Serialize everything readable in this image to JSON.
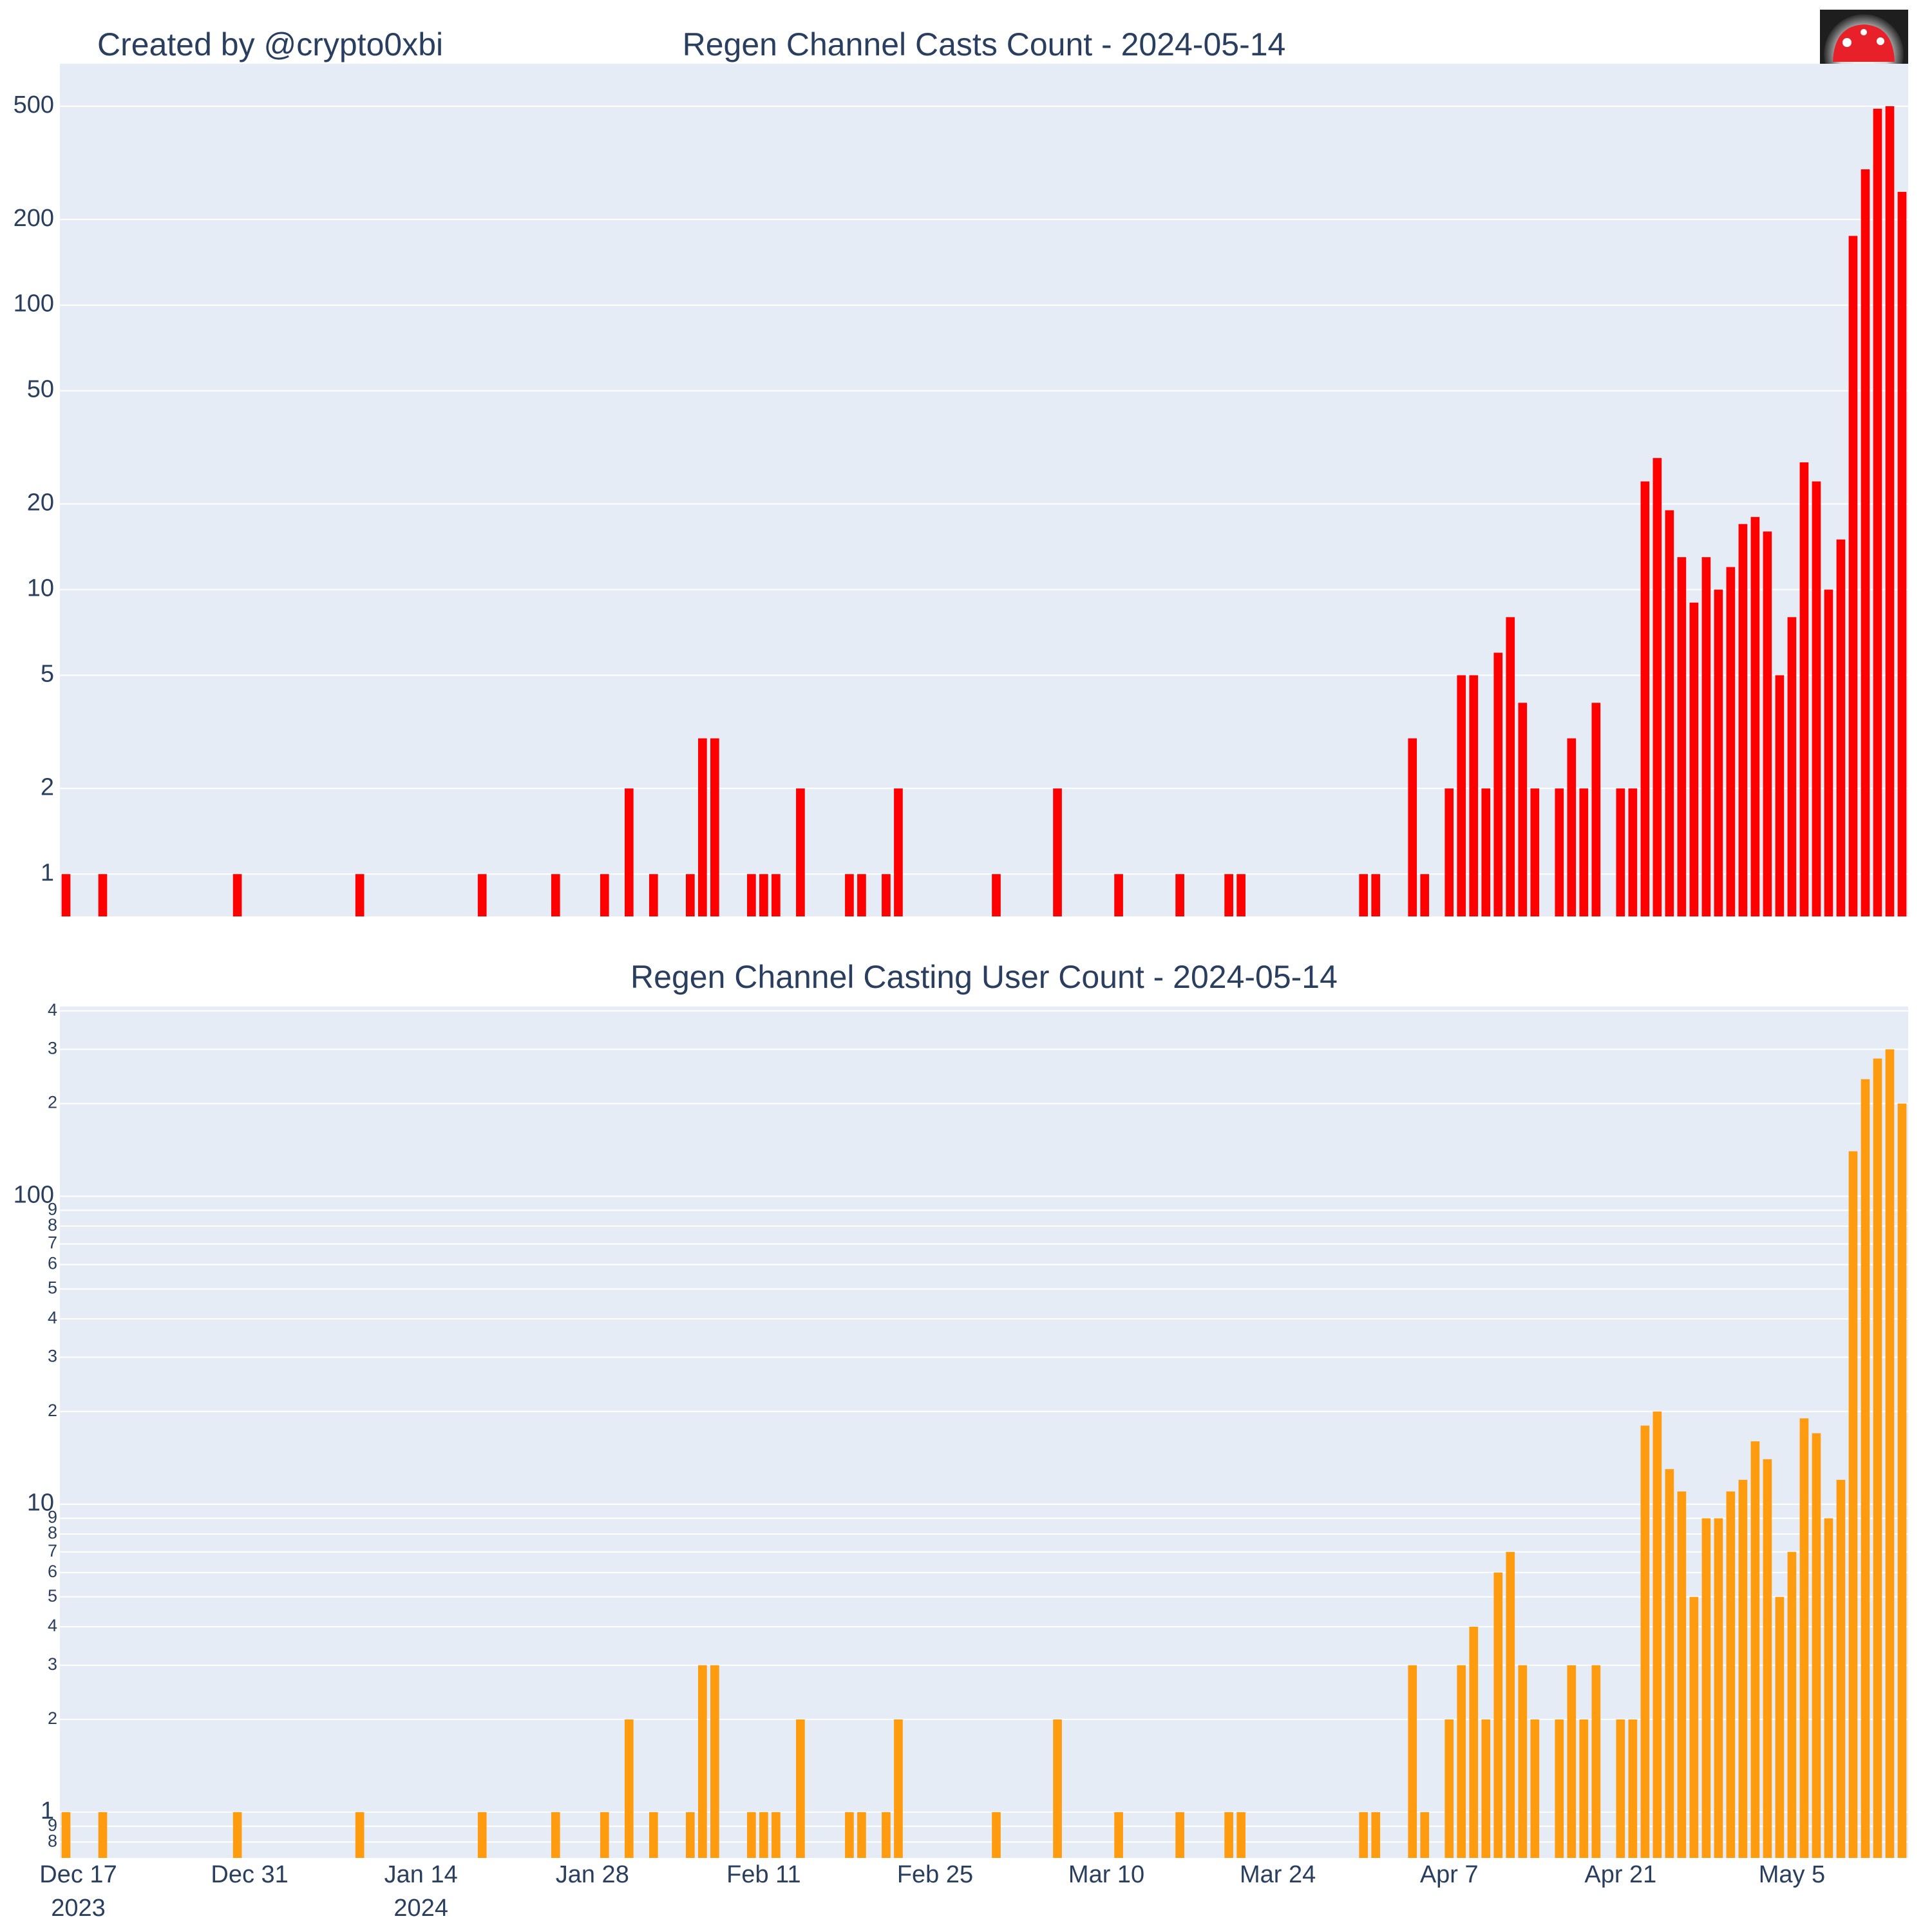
{
  "chart_data": [
    {
      "type": "bar",
      "title": "Regen Channel Casts Count - 2024-05-14",
      "annotation": "Created by @crypto0xbi",
      "color": "#ff0000",
      "log_y": true,
      "grid": true,
      "x": [
        "2023-12-16",
        "2023-12-17",
        "2023-12-18",
        "2023-12-19",
        "2023-12-20",
        "2023-12-21",
        "2023-12-22",
        "2023-12-23",
        "2023-12-24",
        "2023-12-25",
        "2023-12-26",
        "2023-12-27",
        "2023-12-28",
        "2023-12-29",
        "2023-12-30",
        "2023-12-31",
        "2024-01-01",
        "2024-01-02",
        "2024-01-03",
        "2024-01-04",
        "2024-01-05",
        "2024-01-06",
        "2024-01-07",
        "2024-01-08",
        "2024-01-09",
        "2024-01-10",
        "2024-01-11",
        "2024-01-12",
        "2024-01-13",
        "2024-01-14",
        "2024-01-15",
        "2024-01-16",
        "2024-01-17",
        "2024-01-18",
        "2024-01-19",
        "2024-01-20",
        "2024-01-21",
        "2024-01-22",
        "2024-01-23",
        "2024-01-24",
        "2024-01-25",
        "2024-01-26",
        "2024-01-27",
        "2024-01-28",
        "2024-01-29",
        "2024-01-30",
        "2024-01-31",
        "2024-02-01",
        "2024-02-02",
        "2024-02-03",
        "2024-02-04",
        "2024-02-05",
        "2024-02-06",
        "2024-02-07",
        "2024-02-08",
        "2024-02-09",
        "2024-02-10",
        "2024-02-11",
        "2024-02-12",
        "2024-02-13",
        "2024-02-14",
        "2024-02-15",
        "2024-02-16",
        "2024-02-17",
        "2024-02-18",
        "2024-02-19",
        "2024-02-20",
        "2024-02-21",
        "2024-02-22",
        "2024-02-23",
        "2024-02-24",
        "2024-02-25",
        "2024-02-26",
        "2024-02-27",
        "2024-02-28",
        "2024-02-29",
        "2024-03-01",
        "2024-03-02",
        "2024-03-03",
        "2024-03-04",
        "2024-03-05",
        "2024-03-06",
        "2024-03-07",
        "2024-03-08",
        "2024-03-09",
        "2024-03-10",
        "2024-03-11",
        "2024-03-12",
        "2024-03-13",
        "2024-03-14",
        "2024-03-15",
        "2024-03-16",
        "2024-03-17",
        "2024-03-18",
        "2024-03-19",
        "2024-03-20",
        "2024-03-21",
        "2024-03-22",
        "2024-03-23",
        "2024-03-24",
        "2024-03-25",
        "2024-03-26",
        "2024-03-27",
        "2024-03-28",
        "2024-03-29",
        "2024-03-30",
        "2024-03-31",
        "2024-04-01",
        "2024-04-02",
        "2024-04-03",
        "2024-04-04",
        "2024-04-05",
        "2024-04-06",
        "2024-04-07",
        "2024-04-08",
        "2024-04-09",
        "2024-04-10",
        "2024-04-11",
        "2024-04-12",
        "2024-04-13",
        "2024-04-14",
        "2024-04-15",
        "2024-04-16",
        "2024-04-17",
        "2024-04-18",
        "2024-04-19",
        "2024-04-20",
        "2024-04-21",
        "2024-04-22",
        "2024-04-23",
        "2024-04-24",
        "2024-04-25",
        "2024-04-26",
        "2024-04-27",
        "2024-04-28",
        "2024-04-29",
        "2024-04-30",
        "2024-05-01",
        "2024-05-02",
        "2024-05-03",
        "2024-05-04",
        "2024-05-05",
        "2024-05-06",
        "2024-05-07",
        "2024-05-08",
        "2024-05-09",
        "2024-05-10",
        "2024-05-11",
        "2024-05-12",
        "2024-05-13",
        "2024-05-14"
      ],
      "values": [
        1,
        null,
        null,
        1,
        null,
        null,
        null,
        null,
        null,
        null,
        null,
        null,
        null,
        null,
        1,
        null,
        null,
        null,
        null,
        null,
        null,
        null,
        null,
        null,
        1,
        null,
        null,
        null,
        null,
        null,
        null,
        null,
        null,
        null,
        1,
        null,
        null,
        null,
        null,
        null,
        1,
        null,
        null,
        null,
        1,
        null,
        2,
        null,
        1,
        null,
        null,
        1,
        3,
        3,
        null,
        null,
        1,
        1,
        1,
        null,
        2,
        null,
        null,
        null,
        1,
        1,
        null,
        1,
        2,
        null,
        null,
        null,
        null,
        null,
        null,
        null,
        1,
        null,
        null,
        null,
        null,
        2,
        null,
        null,
        null,
        null,
        1,
        null,
        null,
        null,
        null,
        1,
        null,
        null,
        null,
        1,
        1,
        null,
        null,
        null,
        null,
        null,
        null,
        null,
        null,
        null,
        1,
        1,
        null,
        null,
        3,
        1,
        null,
        2,
        5,
        5,
        2,
        6,
        8,
        4,
        2,
        null,
        2,
        3,
        2,
        4,
        null,
        2,
        2,
        24,
        29,
        19,
        13,
        9,
        13,
        10,
        12,
        17,
        18,
        16,
        5,
        8,
        28,
        24,
        10,
        15,
        175,
        300,
        490,
        500,
        250
      ],
      "xlim": [
        "2023-12-15T12:00",
        "2024-05-14T12:00"
      ],
      "ylim": [
        0.71,
        705
      ],
      "yticks": [
        1,
        2,
        5,
        10,
        20,
        50,
        100,
        200,
        500
      ]
    },
    {
      "type": "bar",
      "title": "Regen Channel Casting User Count - 2024-05-14",
      "color": "#ff9b0f",
      "log_y": true,
      "grid": true,
      "x": [
        "2023-12-16",
        "2023-12-17",
        "2023-12-18",
        "2023-12-19",
        "2023-12-20",
        "2023-12-21",
        "2023-12-22",
        "2023-12-23",
        "2023-12-24",
        "2023-12-25",
        "2023-12-26",
        "2023-12-27",
        "2023-12-28",
        "2023-12-29",
        "2023-12-30",
        "2023-12-31",
        "2024-01-01",
        "2024-01-02",
        "2024-01-03",
        "2024-01-04",
        "2024-01-05",
        "2024-01-06",
        "2024-01-07",
        "2024-01-08",
        "2024-01-09",
        "2024-01-10",
        "2024-01-11",
        "2024-01-12",
        "2024-01-13",
        "2024-01-14",
        "2024-01-15",
        "2024-01-16",
        "2024-01-17",
        "2024-01-18",
        "2024-01-19",
        "2024-01-20",
        "2024-01-21",
        "2024-01-22",
        "2024-01-23",
        "2024-01-24",
        "2024-01-25",
        "2024-01-26",
        "2024-01-27",
        "2024-01-28",
        "2024-01-29",
        "2024-01-30",
        "2024-01-31",
        "2024-02-01",
        "2024-02-02",
        "2024-02-03",
        "2024-02-04",
        "2024-02-05",
        "2024-02-06",
        "2024-02-07",
        "2024-02-08",
        "2024-02-09",
        "2024-02-10",
        "2024-02-11",
        "2024-02-12",
        "2024-02-13",
        "2024-02-14",
        "2024-02-15",
        "2024-02-16",
        "2024-02-17",
        "2024-02-18",
        "2024-02-19",
        "2024-02-20",
        "2024-02-21",
        "2024-02-22",
        "2024-02-23",
        "2024-02-24",
        "2024-02-25",
        "2024-02-26",
        "2024-02-27",
        "2024-02-28",
        "2024-02-29",
        "2024-03-01",
        "2024-03-02",
        "2024-03-03",
        "2024-03-04",
        "2024-03-05",
        "2024-03-06",
        "2024-03-07",
        "2024-03-08",
        "2024-03-09",
        "2024-03-10",
        "2024-03-11",
        "2024-03-12",
        "2024-03-13",
        "2024-03-14",
        "2024-03-15",
        "2024-03-16",
        "2024-03-17",
        "2024-03-18",
        "2024-03-19",
        "2024-03-20",
        "2024-03-21",
        "2024-03-22",
        "2024-03-23",
        "2024-03-24",
        "2024-03-25",
        "2024-03-26",
        "2024-03-27",
        "2024-03-28",
        "2024-03-29",
        "2024-03-30",
        "2024-03-31",
        "2024-04-01",
        "2024-04-02",
        "2024-04-03",
        "2024-04-04",
        "2024-04-05",
        "2024-04-06",
        "2024-04-07",
        "2024-04-08",
        "2024-04-09",
        "2024-04-10",
        "2024-04-11",
        "2024-04-12",
        "2024-04-13",
        "2024-04-14",
        "2024-04-15",
        "2024-04-16",
        "2024-04-17",
        "2024-04-18",
        "2024-04-19",
        "2024-04-20",
        "2024-04-21",
        "2024-04-22",
        "2024-04-23",
        "2024-04-24",
        "2024-04-25",
        "2024-04-26",
        "2024-04-27",
        "2024-04-28",
        "2024-04-29",
        "2024-04-30",
        "2024-05-01",
        "2024-05-02",
        "2024-05-03",
        "2024-05-04",
        "2024-05-05",
        "2024-05-06",
        "2024-05-07",
        "2024-05-08",
        "2024-05-09",
        "2024-05-10",
        "2024-05-11",
        "2024-05-12",
        "2024-05-13",
        "2024-05-14"
      ],
      "values": [
        1,
        null,
        null,
        1,
        null,
        null,
        null,
        null,
        null,
        null,
        null,
        null,
        null,
        null,
        1,
        null,
        null,
        null,
        null,
        null,
        null,
        null,
        null,
        null,
        1,
        null,
        null,
        null,
        null,
        null,
        null,
        null,
        null,
        null,
        1,
        null,
        null,
        null,
        null,
        null,
        1,
        null,
        null,
        null,
        1,
        null,
        2,
        null,
        1,
        null,
        null,
        1,
        3,
        3,
        null,
        null,
        1,
        1,
        1,
        null,
        2,
        null,
        null,
        null,
        1,
        1,
        null,
        1,
        2,
        null,
        null,
        null,
        null,
        null,
        null,
        null,
        1,
        null,
        null,
        null,
        null,
        2,
        null,
        null,
        null,
        null,
        1,
        null,
        null,
        null,
        null,
        1,
        null,
        null,
        null,
        1,
        1,
        null,
        null,
        null,
        null,
        null,
        null,
        null,
        null,
        null,
        1,
        1,
        null,
        null,
        3,
        1,
        null,
        2,
        3,
        4,
        2,
        6,
        7,
        3,
        2,
        null,
        2,
        3,
        2,
        3,
        null,
        2,
        2,
        18,
        20,
        13,
        11,
        5,
        9,
        9,
        11,
        12,
        16,
        14,
        5,
        7,
        19,
        17,
        9,
        12,
        140,
        240,
        280,
        300,
        200
      ],
      "xlim": [
        "2023-12-15T12:00",
        "2024-05-14T12:00"
      ],
      "xticks": [
        {
          "value": "2023-12-17",
          "label": "Dec 17\n2023"
        },
        {
          "value": "2023-12-31",
          "label": "Dec 31"
        },
        {
          "value": "2024-01-14",
          "label": "Jan 14\n2024"
        },
        {
          "value": "2024-01-28",
          "label": "Jan 28"
        },
        {
          "value": "2024-02-11",
          "label": "Feb 11"
        },
        {
          "value": "2024-02-25",
          "label": "Feb 25"
        },
        {
          "value": "2024-03-10",
          "label": "Mar 10"
        },
        {
          "value": "2024-03-24",
          "label": "Mar 24"
        },
        {
          "value": "2024-04-07",
          "label": "Apr 7"
        },
        {
          "value": "2024-04-21",
          "label": "Apr 21"
        },
        {
          "value": "2024-05-05",
          "label": "May 5"
        }
      ],
      "ylim": [
        0.71,
        413
      ],
      "yticks": [
        {
          "value": 0.8,
          "label": "8"
        },
        {
          "value": 0.9,
          "label": "9"
        },
        1,
        {
          "value": 2,
          "label": "2"
        },
        {
          "value": 3,
          "label": "3"
        },
        {
          "value": 4,
          "label": "4"
        },
        {
          "value": 5,
          "label": "5"
        },
        {
          "value": 6,
          "label": "6"
        },
        {
          "value": 7,
          "label": "7"
        },
        {
          "value": 8,
          "label": "8"
        },
        {
          "value": 9,
          "label": "9"
        },
        10,
        {
          "value": 20,
          "label": "2"
        },
        {
          "value": 30,
          "label": "3"
        },
        {
          "value": 40,
          "label": "4"
        },
        {
          "value": 50,
          "label": "5"
        },
        {
          "value": 60,
          "label": "6"
        },
        {
          "value": 70,
          "label": "7"
        },
        {
          "value": 80,
          "label": "8"
        },
        {
          "value": 90,
          "label": "9"
        },
        100,
        {
          "value": 200,
          "label": "2"
        },
        {
          "value": 300,
          "label": "3"
        },
        {
          "value": 400,
          "label": "4"
        }
      ]
    }
  ]
}
